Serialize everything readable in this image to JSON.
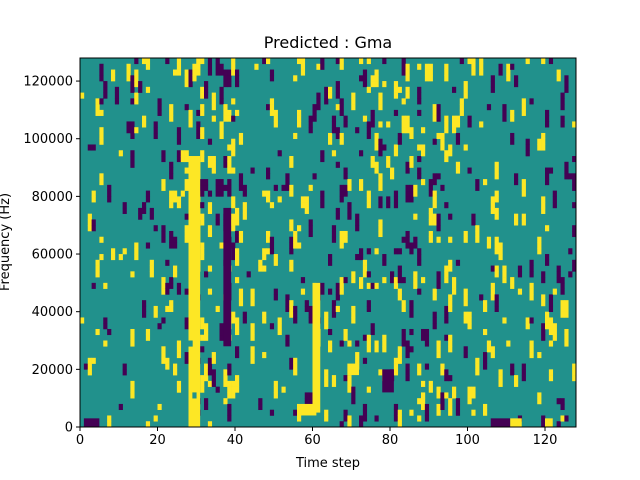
{
  "chart_data": {
    "type": "heatmap",
    "title": "Predicted : Gma",
    "xlabel": "Time step",
    "ylabel": "Frequency (Hz)",
    "xlim": [
      0,
      128
    ],
    "ylim": [
      0,
      128000
    ],
    "x_ticks": [
      0,
      20,
      40,
      60,
      80,
      100,
      120
    ],
    "y_ticks": [
      0,
      20000,
      40000,
      60000,
      80000,
      100000,
      120000
    ],
    "n_time_steps": 128,
    "n_freq_bins": 64,
    "colors": {
      "background": "#21918c",
      "high": "#fde725",
      "low": "#440154"
    },
    "yellow_columns": [
      28,
      29,
      30
    ],
    "yellow_spans": [
      {
        "x": [
          28,
          31
        ],
        "y": [
          0,
          94000
        ]
      },
      {
        "x": [
          60,
          62
        ],
        "y": [
          5000,
          50000
        ]
      },
      {
        "x": [
          56,
          61
        ],
        "y": [
          4000,
          8000
        ]
      },
      {
        "x": [
          69,
          72
        ],
        "y": [
          18000,
          22000
        ]
      },
      {
        "x": [
          111,
          114
        ],
        "y": [
          0,
          3000
        ]
      },
      {
        "x": [
          120,
          122
        ],
        "y": [
          0,
          3000
        ]
      }
    ],
    "purple_spans": [
      {
        "x": [
          37,
          39
        ],
        "y": [
          28000,
          76000
        ]
      },
      {
        "x": [
          78,
          81
        ],
        "y": [
          12000,
          20000
        ]
      },
      {
        "x": [
          106,
          111
        ],
        "y": [
          0,
          3000
        ]
      },
      {
        "x": [
          1,
          5
        ],
        "y": [
          0,
          3000
        ]
      }
    ]
  }
}
